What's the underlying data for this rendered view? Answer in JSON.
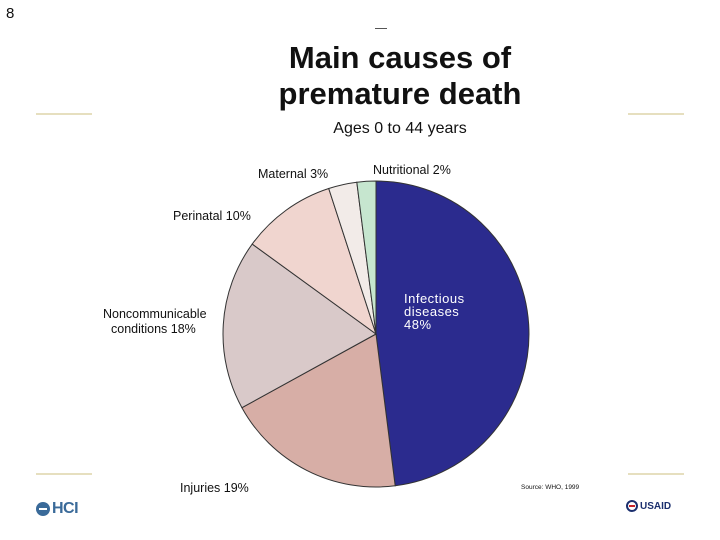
{
  "slide": {
    "number": "8"
  },
  "chart_data": {
    "type": "pie",
    "title": "Main causes of premature death",
    "subtitle": "Ages 0 to 44 years",
    "source": "Source: WHO, 1999",
    "slices": [
      {
        "label": "Infectious diseases",
        "value": 48,
        "value_label": "48%",
        "color": "#2b2b8e"
      },
      {
        "label": "Injuries",
        "value": 19,
        "value_label": "19%",
        "color": "#d7aea6"
      },
      {
        "label": "Noncommunicable conditions",
        "value": 18,
        "value_label": "18%",
        "color": "#d9c9c9"
      },
      {
        "label": "Perinatal",
        "value": 10,
        "value_label": "10%",
        "color": "#f0d5cf"
      },
      {
        "label": "Maternal",
        "value": 3,
        "value_label": "3%",
        "color": "#f2ebe8"
      },
      {
        "label": "Nutritional",
        "value": 2,
        "value_label": "2%",
        "color": "#c6e6cf"
      }
    ]
  },
  "labels": {
    "infectious_l1": "Infectious",
    "infectious_l2": "diseases",
    "infectious_l3": "48%",
    "injuries": "Injuries 19%",
    "noncomm_l1": "Noncommunicable",
    "noncomm_l2": "conditions 18%",
    "perinatal": "Perinatal 10%",
    "maternal": "Maternal 3%",
    "nutritional": "Nutritional 2%"
  },
  "logos": {
    "left": "HCI",
    "right": "USAID"
  },
  "colors": {
    "outline": "#333333",
    "rule": "#e6dfbf"
  }
}
